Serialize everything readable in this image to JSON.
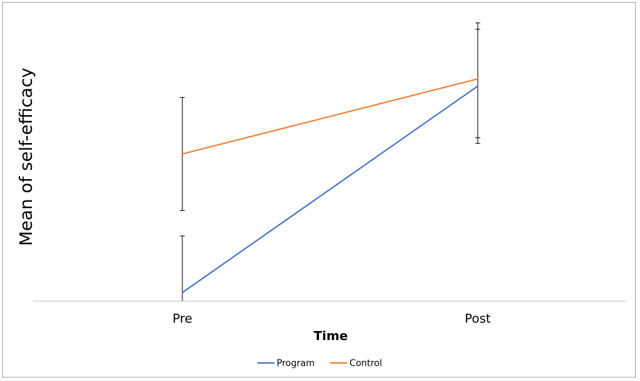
{
  "chart_data": {
    "type": "line",
    "categories": [
      "Pre",
      "Post"
    ],
    "xlabel": "Time",
    "ylabel": "Mean of self-efficacy",
    "ylim": [
      0,
      100
    ],
    "legend_position": "bottom",
    "grid": false,
    "series": [
      {
        "name": "Program",
        "color": "#4472c4",
        "values": [
          3.0,
          74.5
        ],
        "error_upper": [
          22.6,
          94.2
        ],
        "error_lower": [
          0,
          54.7
        ]
      },
      {
        "name": "Control",
        "color": "#ed7d31",
        "values": [
          51.0,
          77.0
        ],
        "error_upper": [
          70.6,
          96.4
        ],
        "error_lower": [
          31.4,
          56.6
        ]
      }
    ]
  }
}
